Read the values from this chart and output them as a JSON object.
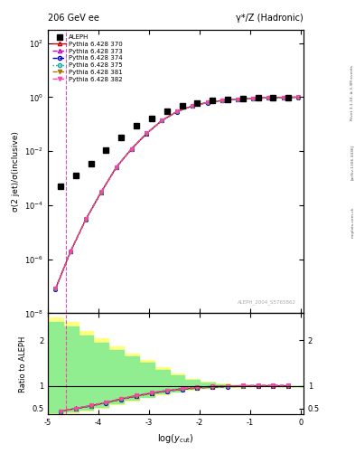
{
  "title_left": "206 GeV ee",
  "title_right": "γ*/Z (Hadronic)",
  "ylabel_main": "σ(2 jet)/σ(inclusive)",
  "ylabel_ratio": "Ratio to ALEPH",
  "xlabel": "log(y_{cut})",
  "watermark": "ALEPH_2004_S5765862",
  "right_label1": "Rivet 3.1.10, ≥ 3.3M events",
  "right_label2": "[arXiv:1306.3436]",
  "right_label3": "mcplots.cern.ch",
  "xmin": -5.0,
  "xmax": 0.05,
  "data_x": [
    -4.75,
    -4.45,
    -4.15,
    -3.85,
    -3.55,
    -3.25,
    -2.95,
    -2.65,
    -2.35,
    -2.05,
    -1.75,
    -1.45,
    -1.15,
    -0.85,
    -0.55,
    -0.25
  ],
  "data_y": [
    0.0005,
    0.0013,
    0.0035,
    0.011,
    0.032,
    0.085,
    0.165,
    0.31,
    0.475,
    0.62,
    0.74,
    0.825,
    0.885,
    0.935,
    0.965,
    0.985
  ],
  "mc_x": [
    -4.85,
    -4.55,
    -4.25,
    -3.95,
    -3.65,
    -3.35,
    -3.05,
    -2.75,
    -2.45,
    -2.15,
    -1.85,
    -1.55,
    -1.25,
    -0.95,
    -0.65,
    -0.35,
    -0.05
  ],
  "mc_y": [
    8e-08,
    2e-06,
    3e-05,
    0.0003,
    0.0025,
    0.012,
    0.045,
    0.135,
    0.29,
    0.47,
    0.625,
    0.745,
    0.83,
    0.89,
    0.94,
    0.97,
    0.99
  ],
  "vline_x": -4.65,
  "mc_lines": [
    {
      "label": "Pythia 6.428 370",
      "color": "#cc0000",
      "ls": "-",
      "marker": "^",
      "mfc": "none",
      "mec": "#cc0000"
    },
    {
      "label": "Pythia 6.428 373",
      "color": "#cc00cc",
      "ls": "--",
      "marker": "^",
      "mfc": "none",
      "mec": "#cc00cc"
    },
    {
      "label": "Pythia 6.428 374",
      "color": "#0000cc",
      "ls": "--",
      "marker": "o",
      "mfc": "none",
      "mec": "#0000cc"
    },
    {
      "label": "Pythia 6.428 375",
      "color": "#00aaaa",
      "ls": ":",
      "marker": "o",
      "mfc": "none",
      "mec": "#00aaaa"
    },
    {
      "label": "Pythia 6.428 381",
      "color": "#aa7700",
      "ls": "--",
      "marker": "v",
      "mfc": "#aa7700",
      "mec": "#aa7700"
    },
    {
      "label": "Pythia 6.428 382",
      "color": "#ff44aa",
      "ls": "--",
      "marker": "v",
      "mfc": "#ff44aa",
      "mec": "#ff44aa"
    }
  ],
  "ratio_x": [
    -4.75,
    -4.45,
    -4.15,
    -3.85,
    -3.55,
    -3.25,
    -2.95,
    -2.65,
    -2.35,
    -2.05,
    -1.75,
    -1.45,
    -1.15,
    -0.85,
    -0.55,
    -0.25
  ],
  "ratio_y": [
    0.44,
    0.5,
    0.56,
    0.63,
    0.71,
    0.78,
    0.84,
    0.89,
    0.93,
    0.96,
    0.98,
    0.99,
    0.995,
    0.999,
    1.0,
    1.0
  ],
  "band_edges": [
    -5.0,
    -4.7,
    -4.4,
    -4.1,
    -3.8,
    -3.5,
    -3.2,
    -2.9,
    -2.6,
    -2.3,
    -2.0,
    -1.7,
    -1.4,
    -1.1,
    -0.8,
    -0.5,
    -0.2,
    0.05
  ],
  "band_y_lo": [
    0.4,
    0.42,
    0.46,
    0.52,
    0.6,
    0.68,
    0.75,
    0.82,
    0.87,
    0.92,
    0.95,
    0.97,
    0.98,
    0.99,
    0.995,
    0.998,
    1.0,
    1.0
  ],
  "band_y_hi": [
    2.5,
    2.4,
    2.2,
    2.05,
    1.88,
    1.72,
    1.58,
    1.42,
    1.28,
    1.16,
    1.09,
    1.05,
    1.02,
    1.01,
    1.005,
    1.002,
    1.0,
    1.0
  ],
  "band_g_lo": [
    0.42,
    0.44,
    0.48,
    0.54,
    0.62,
    0.7,
    0.76,
    0.83,
    0.88,
    0.93,
    0.955,
    0.972,
    0.983,
    0.991,
    0.996,
    0.999,
    1.0,
    1.0
  ],
  "band_g_hi": [
    2.4,
    2.3,
    2.1,
    1.96,
    1.8,
    1.65,
    1.52,
    1.36,
    1.24,
    1.13,
    1.07,
    1.037,
    1.015,
    1.007,
    1.003,
    1.001,
    1.0,
    1.0
  ]
}
